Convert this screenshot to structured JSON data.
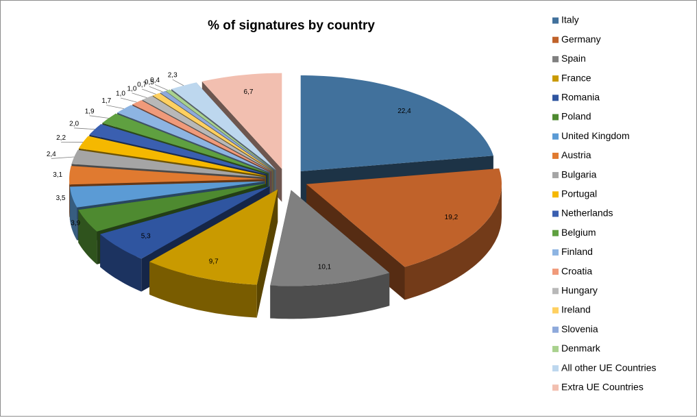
{
  "chart_data": {
    "type": "pie",
    "title": "% of signatures by country",
    "categories": [
      "Italy",
      "Germany",
      "Spain",
      "France",
      "Romania",
      "Poland",
      "United Kingdom",
      "Austria",
      "Bulgaria",
      "Portugal",
      "Netherlands",
      "Belgium",
      "Finland",
      "Croatia",
      "Hungary",
      "Ireland",
      "Slovenia",
      "Denmark",
      "All other UE Countries",
      "Extra UE Countries"
    ],
    "values": [
      22.4,
      19.2,
      10.1,
      9.7,
      5.3,
      3.9,
      3.5,
      3.1,
      2.4,
      2.2,
      2.0,
      1.9,
      1.7,
      1.0,
      1.0,
      0.7,
      0.5,
      0.4,
      2.3,
      6.7
    ],
    "value_labels": [
      "22,4",
      "19,2",
      "10,1",
      "9,7",
      "5,3",
      "3,9",
      "3,5",
      "3,1",
      "2,4",
      "2,2",
      "2,0",
      "1,9",
      "1,7",
      "1,0",
      "1,0",
      "0,7",
      "0,5",
      "0,4",
      "2,3",
      "6,7"
    ],
    "colors": [
      "#41719c",
      "#c0622a",
      "#808080",
      "#c99a00",
      "#2f55a0",
      "#4e8a30",
      "#5b9bd5",
      "#e07a30",
      "#a5a5a5",
      "#f5b800",
      "#3a5fb0",
      "#5fa040",
      "#8db4e2",
      "#f09a7a",
      "#b8b8b8",
      "#ffd060",
      "#8ea9db",
      "#a9d18e",
      "#bdd7ee",
      "#f2bfb0"
    ],
    "legend": "right"
  }
}
